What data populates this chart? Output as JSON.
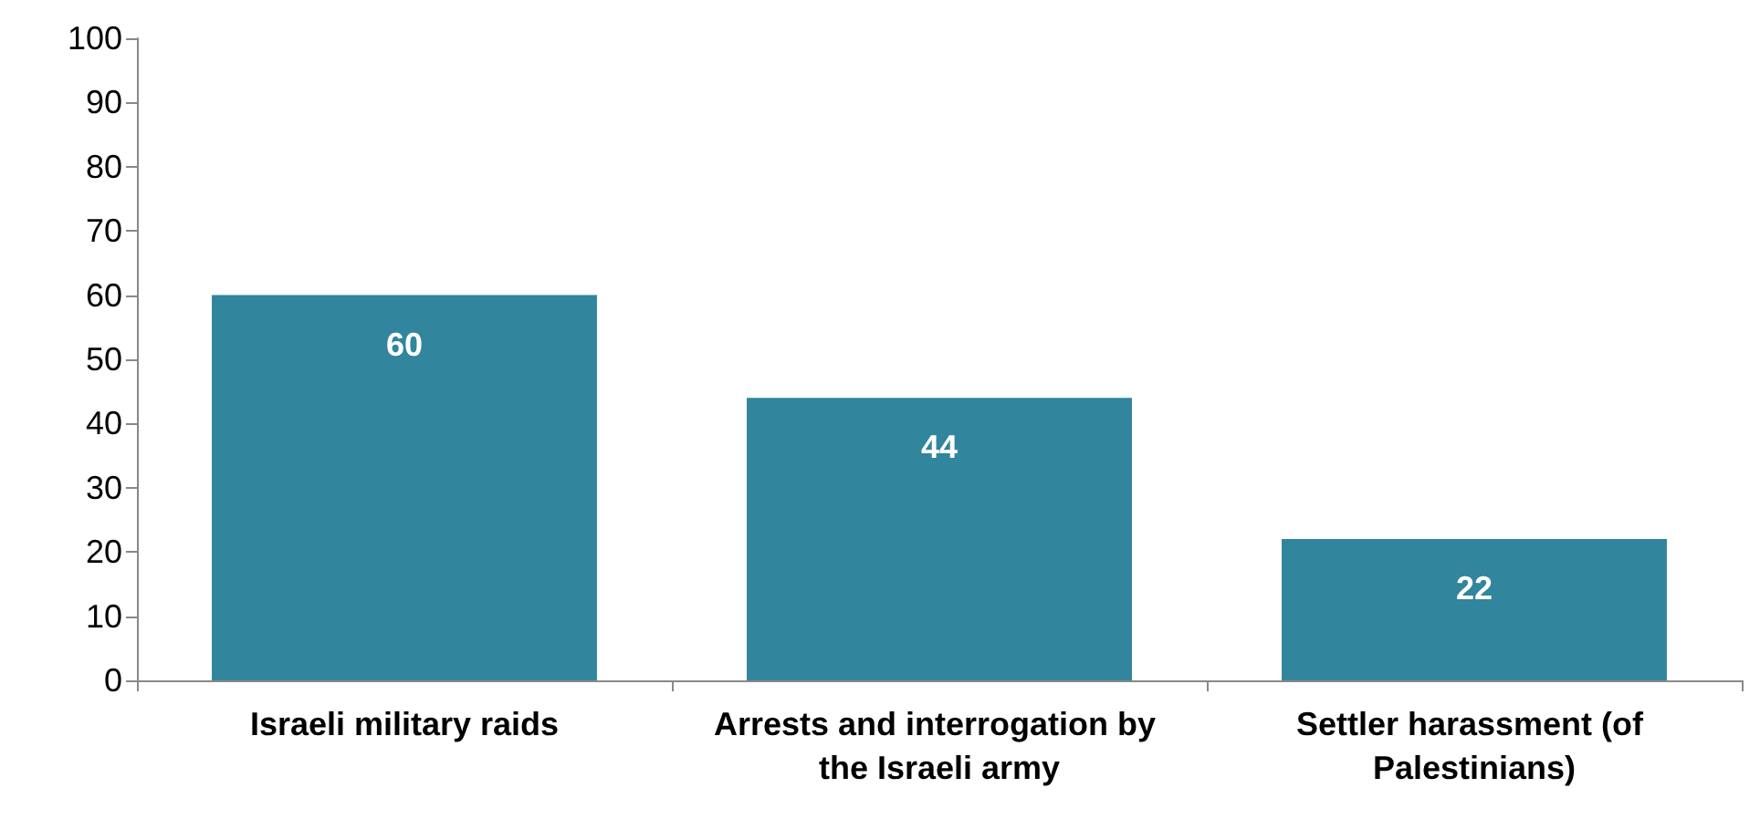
{
  "chart_data": {
    "type": "bar",
    "categories": [
      "Israeli military raids",
      "Arrests and interrogation by the Israeli army",
      "Settler harassment (of Palestinians)"
    ],
    "values": [
      60,
      44,
      22
    ],
    "color": "#31859c",
    "ylim": [
      0,
      100
    ],
    "yticks": [
      0,
      10,
      20,
      30,
      40,
      50,
      60,
      70,
      80,
      90,
      100
    ],
    "grid": false,
    "data_labels": true
  }
}
